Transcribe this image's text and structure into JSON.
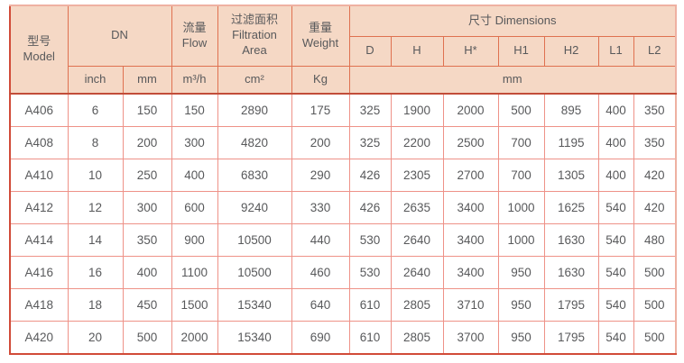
{
  "chart_data": {
    "type": "table",
    "header": {
      "model_zh": "型号",
      "model_en": "Model",
      "dn": "DN",
      "flow_zh": "流量",
      "flow_en": "Flow",
      "area_zh": "过滤面积",
      "area_en_1": "Filtration",
      "area_en_2": "Area",
      "weight_zh": "重量",
      "weight_en": "Weight",
      "dimensions": "尺寸 Dimensions",
      "dims": [
        "D",
        "H",
        "H*",
        "H1",
        "H2",
        "L1",
        "L2"
      ],
      "unit_inch": "inch",
      "unit_mm": "mm",
      "unit_flow": "m³/h",
      "unit_area": "cm²",
      "unit_weight": "Kg",
      "unit_dims_mm": "mm"
    },
    "columns": [
      "Model",
      "DN inch",
      "DN mm",
      "Flow m³/h",
      "Filtration Area cm²",
      "Weight Kg",
      "D mm",
      "H mm",
      "H* mm",
      "H1 mm",
      "H2 mm",
      "L1 mm",
      "L2 mm"
    ],
    "rows": [
      [
        "A406",
        "6",
        "150",
        "150",
        "2890",
        "175",
        "325",
        "1900",
        "2000",
        "500",
        "895",
        "400",
        "350"
      ],
      [
        "A408",
        "8",
        "200",
        "300",
        "4820",
        "200",
        "325",
        "2200",
        "2500",
        "700",
        "1195",
        "400",
        "350"
      ],
      [
        "A410",
        "10",
        "250",
        "400",
        "6830",
        "290",
        "426",
        "2305",
        "2700",
        "700",
        "1305",
        "400",
        "420"
      ],
      [
        "A412",
        "12",
        "300",
        "600",
        "9240",
        "330",
        "426",
        "2635",
        "3400",
        "1000",
        "1625",
        "540",
        "420"
      ],
      [
        "A414",
        "14",
        "350",
        "900",
        "10500",
        "440",
        "530",
        "2640",
        "3400",
        "1000",
        "1630",
        "540",
        "480"
      ],
      [
        "A416",
        "16",
        "400",
        "1100",
        "10500",
        "460",
        "530",
        "2640",
        "3400",
        "950",
        "1630",
        "540",
        "500"
      ],
      [
        "A418",
        "18",
        "450",
        "1500",
        "15340",
        "640",
        "610",
        "2805",
        "3710",
        "950",
        "1795",
        "540",
        "500"
      ],
      [
        "A420",
        "20",
        "500",
        "2000",
        "15340",
        "690",
        "610",
        "2805",
        "3700",
        "950",
        "1795",
        "540",
        "500"
      ]
    ]
  },
  "colors": {
    "header_bg": "#f5d8c5",
    "header_border": "#df7150",
    "body_border": "#ee9288",
    "outer_border_strong": "#d14b38",
    "outer_border_light": "#eeb1a2",
    "header_separator": "#c24d39",
    "text": "#58595b"
  }
}
